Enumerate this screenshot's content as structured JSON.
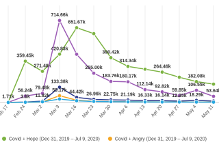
{
  "chart_data": {
    "type": "line",
    "categories": [
      "Feb 17",
      "Feb 24",
      "Mar 2",
      "Mar 9",
      "Mar 16",
      "Mar 23",
      "Mar 30",
      "Apr 6",
      "Apr 13",
      "Apr 20",
      "Apr 27",
      "May 4",
      "May 11"
    ],
    "ylim": [
      0,
      750000
    ],
    "grid": true,
    "series": [
      {
        "name": "Covid + Hope (Dec 31, 2019 – Jul 9, 2020)",
        "color": "#7cb342",
        "values": [
          1500,
          359450,
          271480,
          420830,
          651670,
          600000,
          390420,
          314340,
          290000,
          264460,
          220000,
          182080,
          160000
        ],
        "value_labels": [
          null,
          "359.45k",
          "271.48k",
          "420.83k",
          "651.67k",
          null,
          "390.42k",
          "314.34k",
          null,
          "264.46k",
          null,
          "182.08k",
          null
        ]
      },
      {
        "color": "#9c5bb5",
        "values": [
          1710,
          56240,
          79480,
          714660,
          420000,
          255000,
          183760,
          180170,
          112140,
          92820,
          59850,
          106550,
          53640
        ],
        "value_labels": [
          "1.71k",
          "56.24k",
          "79.48k",
          "714.66k",
          null,
          "255.00k",
          "183.76k",
          "180.17k",
          "112.14k",
          "92.82k",
          "59.85k",
          "106.55k",
          "53.64k"
        ]
      },
      {
        "color": "#2e3a8c",
        "values": [
          500,
          3600,
          11820,
          133380,
          44420,
          26960,
          22750,
          21190,
          16330,
          16140,
          12350,
          18290,
          13000
        ],
        "value_labels": [
          null,
          "3.6k",
          "11.82k",
          "133.38k",
          "44.42k",
          "26.96k",
          "22.75k",
          "21.19k",
          "16.33k",
          "16.14k",
          "12.35k",
          "18.29k",
          null
        ]
      },
      {
        "name": "Covid + Angry (Dec 31, 2019 – Jul 9, 2020)",
        "color": "#f5a623",
        "values": [
          200,
          1500,
          5000,
          59170,
          20000,
          10000,
          8000,
          7000,
          6000,
          5000,
          5000,
          4000,
          4000
        ],
        "value_labels": [
          null,
          null,
          null,
          "59.17k",
          null,
          null,
          null,
          null,
          null,
          null,
          null,
          null,
          null
        ]
      },
      {
        "color": "#29a8e0",
        "values": [
          300,
          2000,
          6000,
          30000,
          15000,
          9000,
          7000,
          6000,
          5000,
          4500,
          4000,
          3500,
          3000
        ]
      }
    ]
  }
}
